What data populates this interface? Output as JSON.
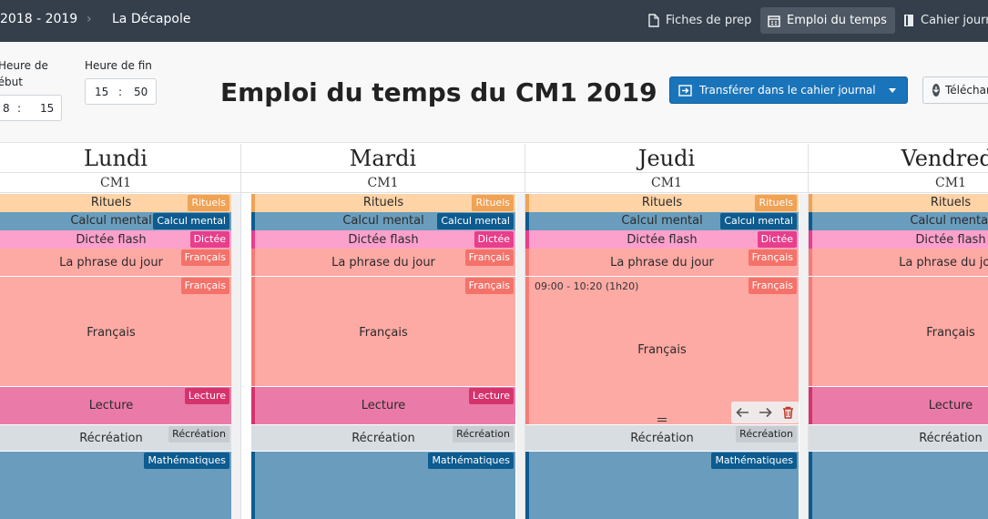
{
  "navbar": {
    "year": "2018 - 2019",
    "separator": "›",
    "school": "La Décapole",
    "links": [
      {
        "label": "Fiches de prep",
        "icon": "file-icon",
        "active": false
      },
      {
        "label": "Emploi du temps",
        "icon": "calendar-icon",
        "active": true
      },
      {
        "label": "Cahier journal",
        "icon": "book-icon",
        "active": false
      }
    ]
  },
  "controls": {
    "start_label_line1": "Heure de",
    "start_label_line2": "début",
    "start_hour": "8",
    "start_minute": "15",
    "end_label": "Heure de fin",
    "end_hour": "15",
    "end_minute": "50",
    "time_sep": ":",
    "title": "Emploi du temps du CM1 2019",
    "transfer_button": "Transférer dans le cahier journal",
    "download_button": "Télécharger"
  },
  "colors": {
    "rituels_bg": "#fed3a6",
    "rituels_tag": "#f0a255",
    "calcul_bg": "#6a9dbd",
    "calcul_tag": "#0d5b8f",
    "dictee_bg": "#fca0cc",
    "dictee_tag": "#e83e8c",
    "francais_bg": "#fda9a4",
    "francais_tag": "#f4726a",
    "francais_strip": "#f77b76",
    "lecture_bg": "#ea7ba8",
    "lecture_tag": "#d6336c",
    "recre_bg": "#d8dde1",
    "recre_tag": "#c6ccd1",
    "maths_bg": "#6a9dbd",
    "maths_tag": "#0d5b8f"
  },
  "days": [
    {
      "name": "Lundi",
      "class": "CM1"
    },
    {
      "name": "Mardi",
      "class": "CM1"
    },
    {
      "name": "Jeudi",
      "class": "CM1"
    },
    {
      "name": "Vendredi",
      "class": "CM1"
    }
  ],
  "slots": {
    "rituels": {
      "title": "Rituels",
      "tag": "Rituels"
    },
    "calcul": {
      "title": "Calcul mental",
      "tag": "Calcul mental"
    },
    "dictee": {
      "title": "Dictée flash",
      "tag": "Dictée"
    },
    "phrase": {
      "title": "La phrase du jour",
      "tag": "Français"
    },
    "francais": {
      "title": "Français",
      "tag": "Français"
    },
    "lecture": {
      "title": "Lecture",
      "tag": "Lecture"
    },
    "recre": {
      "title": "Récréation",
      "tag": "Récréation"
    },
    "maths": {
      "title": "",
      "tag": "Mathématiques"
    }
  },
  "selected": {
    "time_range": "09:00 - 10:20 (1h20)",
    "actions": [
      "arrow-left-icon",
      "arrow-right-icon",
      "trash-icon"
    ]
  }
}
